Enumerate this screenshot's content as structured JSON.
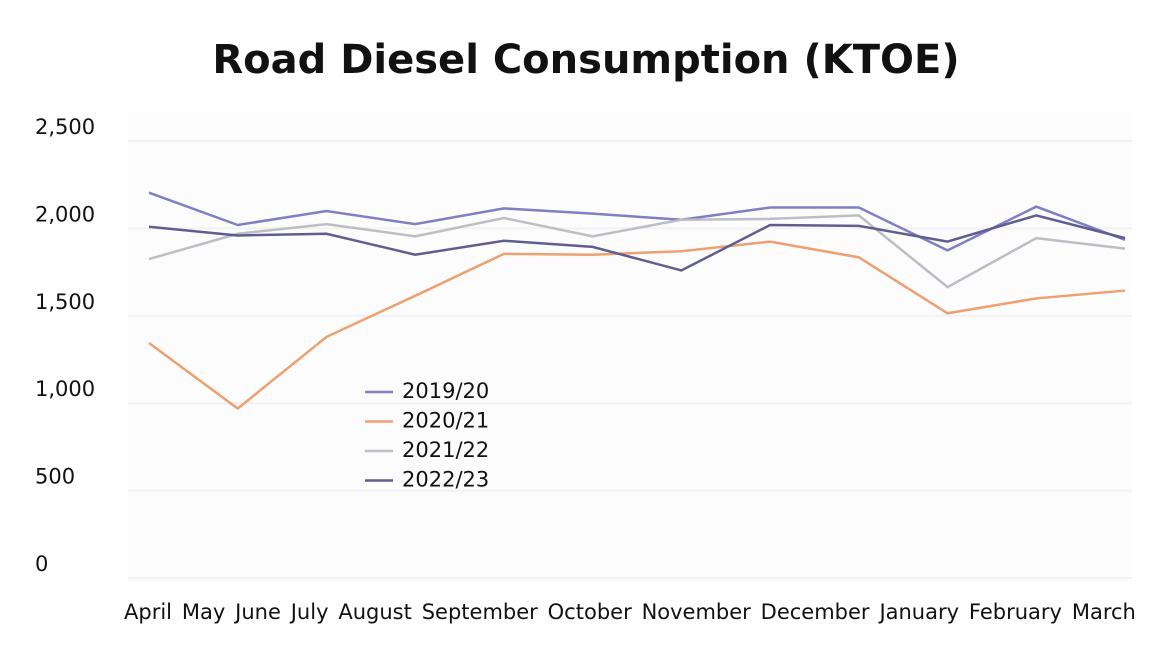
{
  "chart_data": {
    "type": "line",
    "title": "Road Diesel Consumption (KTOE)",
    "categories": [
      "April",
      "May",
      "June",
      "July",
      "August",
      "September",
      "October",
      "November",
      "December",
      "January",
      "February",
      "March"
    ],
    "series": [
      {
        "name": "2019/20",
        "color": "#7f7fc4",
        "values": [
          2130,
          1945,
          2025,
          1950,
          2040,
          2010,
          1975,
          2045,
          2045,
          1800,
          2050,
          1860
        ]
      },
      {
        "name": "2020/21",
        "color": "#eda070",
        "values": [
          1270,
          895,
          1305,
          1540,
          1780,
          1775,
          1795,
          1850,
          1760,
          1440,
          1525,
          1570
        ]
      },
      {
        "name": "2021/22",
        "color": "#bdbdc4",
        "values": [
          1750,
          1895,
          1950,
          1880,
          1985,
          1880,
          1975,
          1980,
          2000,
          1590,
          1870,
          1810
        ]
      },
      {
        "name": "2022/23",
        "color": "#605d91",
        "values": [
          1935,
          1885,
          1895,
          1775,
          1855,
          1820,
          1685,
          1945,
          1940,
          1850,
          2000,
          1870
        ]
      }
    ],
    "ylim": [
      0,
      2500
    ],
    "yticks": [
      0,
      500,
      {
        "value": 1000,
        "label": "1,000"
      },
      {
        "value": 1500,
        "label": "1,500"
      },
      {
        "value": 2000,
        "label": "2,000"
      },
      {
        "value": 2500,
        "label": "2,500"
      }
    ],
    "grid": true
  }
}
